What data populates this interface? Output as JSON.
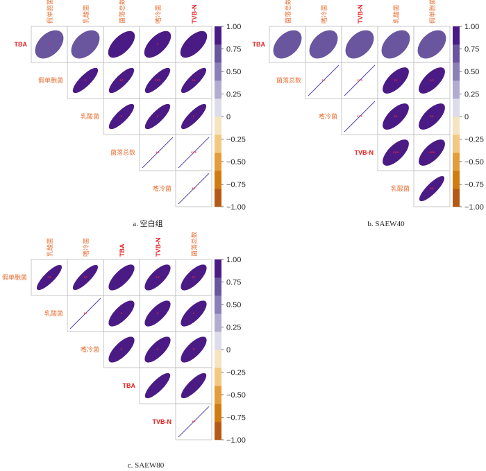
{
  "colors": {
    "label_orange": "#e8743b",
    "label_red": "#e02020",
    "star_red": "#ff2a2a",
    "grid_line": "#bdbdbd",
    "diag_line": "#5a3fb0",
    "colorbar": [
      "#b45a17",
      "#cf7d12",
      "#e39d3a",
      "#f3c880",
      "#f6e3c0",
      "#dcdceb",
      "#b2abd2",
      "#8b7fb8",
      "#6a559f",
      "#4b1b85"
    ]
  },
  "colorbar_ticks": [
    "1.00",
    "0.75",
    "0.50",
    "0.25",
    "0",
    "−0.25",
    "−0.50",
    "−0.75",
    "−1.00"
  ],
  "chart_data": [
    {
      "type": "heatmap",
      "caption": "a. 空白组",
      "variables": [
        "TBA",
        "假单胞菌",
        "乳酸菌",
        "菌落总数",
        "嗜冷菌",
        "TVB-N"
      ],
      "top_labels": [
        "假单胞菌",
        "乳酸菌",
        "菌落总数",
        "嗜冷菌",
        "TVB-N"
      ],
      "row_labels": [
        "TBA",
        "假单胞菌",
        "乳酸菌",
        "菌落总数",
        "嗜冷菌"
      ],
      "top_label_colors": [
        "orange",
        "orange",
        "orange",
        "orange",
        "red"
      ],
      "row_label_colors": [
        "red",
        "orange",
        "orange",
        "orange",
        "orange"
      ],
      "colorbar_range": [
        -1,
        1
      ],
      "cells": [
        [
          {
            "r": 0.7,
            "sig": "*"
          },
          {
            "r": 0.7,
            "sig": ""
          },
          {
            "r": 0.82,
            "sig": ""
          },
          {
            "r": 0.82,
            "sig": "*"
          },
          {
            "r": 0.82,
            "sig": ""
          }
        ],
        [
          null,
          {
            "r": 0.92,
            "sig": "*"
          },
          {
            "r": 0.92,
            "sig": "**"
          },
          {
            "r": 0.92,
            "sig": "***"
          },
          {
            "r": 0.93,
            "sig": "**"
          }
        ],
        [
          null,
          null,
          {
            "r": 0.92,
            "sig": "*"
          },
          {
            "r": 0.92,
            "sig": "*"
          },
          {
            "r": 0.93,
            "sig": "*"
          }
        ],
        [
          null,
          null,
          null,
          {
            "r": 1.0,
            "sig": "**"
          },
          {
            "r": 1.0,
            "sig": "***"
          }
        ],
        [
          null,
          null,
          null,
          null,
          {
            "r": 1.0,
            "sig": "**"
          }
        ]
      ]
    },
    {
      "type": "heatmap",
      "caption": "b. SAEW40",
      "variables": [
        "TBA",
        "菌落总数",
        "嗜冷菌",
        "TVB-N",
        "乳酸菌",
        "假单胞菌"
      ],
      "top_labels": [
        "菌落总数",
        "嗜冷菌",
        "TVB-N",
        "乳酸菌",
        "假单胞菌"
      ],
      "row_labels": [
        "TBA",
        "菌落总数",
        "嗜冷菌",
        "TVB-N",
        "乳酸菌"
      ],
      "top_label_colors": [
        "orange",
        "orange",
        "red",
        "orange",
        "orange"
      ],
      "row_label_colors": [
        "red",
        "orange",
        "orange",
        "red",
        "orange"
      ],
      "colorbar_range": [
        -1,
        1
      ],
      "cells": [
        [
          {
            "r": 0.7,
            "sig": ""
          },
          {
            "r": 0.7,
            "sig": ""
          },
          {
            "r": 0.7,
            "sig": ""
          },
          {
            "r": 0.7,
            "sig": ""
          },
          {
            "r": 0.7,
            "sig": ""
          }
        ],
        [
          null,
          {
            "r": 1.0,
            "sig": "**"
          },
          {
            "r": 1.0,
            "sig": "***"
          },
          {
            "r": 0.85,
            "sig": "**"
          },
          {
            "r": 0.85,
            "sig": "**"
          }
        ],
        [
          null,
          null,
          {
            "r": 1.0,
            "sig": "***"
          },
          {
            "r": 0.85,
            "sig": "**"
          },
          {
            "r": 0.85,
            "sig": "**"
          }
        ],
        [
          null,
          null,
          null,
          {
            "r": 0.85,
            "sig": "***"
          },
          {
            "r": 0.85,
            "sig": "***"
          }
        ],
        [
          null,
          null,
          null,
          null,
          {
            "r": 0.93,
            "sig": "**"
          }
        ]
      ]
    },
    {
      "type": "heatmap",
      "caption": "c. SAEW80",
      "variables": [
        "假单胞菌",
        "乳酸菌",
        "嗜冷菌",
        "TBA",
        "TVB-N",
        "菌落总数"
      ],
      "top_labels": [
        "乳酸菌",
        "嗜冷菌",
        "TBA",
        "TVB-N",
        "菌落总数"
      ],
      "row_labels": [
        "假单胞菌",
        "乳酸菌",
        "嗜冷菌",
        "TBA",
        "TVB-N"
      ],
      "top_label_colors": [
        "orange",
        "orange",
        "red",
        "red",
        "orange"
      ],
      "row_label_colors": [
        "orange",
        "orange",
        "orange",
        "red",
        "red"
      ],
      "colorbar_range": [
        -1,
        1
      ],
      "cells": [
        [
          {
            "r": 0.93,
            "sig": "**"
          },
          {
            "r": 0.93,
            "sig": "**"
          },
          {
            "r": 0.88,
            "sig": ""
          },
          {
            "r": 0.88,
            "sig": "**"
          },
          {
            "r": 0.88,
            "sig": "**"
          }
        ],
        [
          null,
          {
            "r": 1.0,
            "sig": "**"
          },
          {
            "r": 0.88,
            "sig": "*"
          },
          {
            "r": 0.88,
            "sig": "*"
          },
          {
            "r": 0.88,
            "sig": "*"
          }
        ],
        [
          null,
          null,
          {
            "r": 0.88,
            "sig": "*"
          },
          {
            "r": 0.88,
            "sig": "*"
          },
          {
            "r": 0.88,
            "sig": "*"
          }
        ],
        [
          null,
          null,
          null,
          {
            "r": 0.92,
            "sig": ""
          },
          {
            "r": 0.92,
            "sig": ""
          }
        ],
        [
          null,
          null,
          null,
          null,
          {
            "r": 1.0,
            "sig": "**"
          }
        ]
      ]
    }
  ]
}
